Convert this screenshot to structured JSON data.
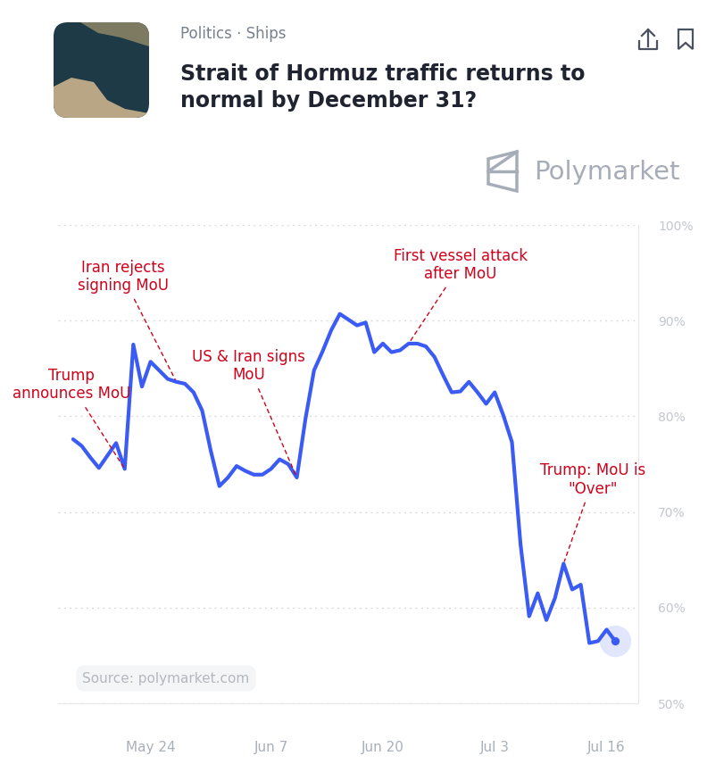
{
  "chart_data": {
    "type": "line",
    "header": {
      "category": "Politics · Ships",
      "title": "Strait of Hormuz traffic returns to normal by December 31?",
      "brand": "Polymarket"
    },
    "source": "Source: polymarket.com",
    "categories": [
      null,
      null,
      null,
      null,
      null,
      null,
      null,
      null,
      null,
      "May 24",
      null,
      null,
      null,
      null,
      null,
      null,
      null,
      null,
      null,
      null,
      null,
      null,
      null,
      "Jun 7",
      null,
      null,
      null,
      null,
      null,
      null,
      null,
      null,
      null,
      null,
      null,
      null,
      "Jun 20",
      null,
      null,
      null,
      null,
      null,
      null,
      null,
      null,
      null,
      null,
      null,
      null,
      "Jul 3",
      null,
      null,
      null,
      null,
      null,
      null,
      null,
      null,
      null,
      null,
      null,
      null,
      "Jul 16",
      null
    ],
    "series": [
      {
        "color": "#3b5bf5",
        "line_style": "solid",
        "values": [
          77.6,
          76.9,
          75.7,
          74.6,
          75.9,
          77.2,
          74.5,
          87.5,
          83.1,
          85.7,
          84.8,
          83.9,
          83.6,
          83.4,
          82.5,
          80.6,
          76.4,
          72.7,
          73.6,
          74.8,
          74.3,
          73.9,
          73.9,
          74.5,
          75.5,
          75.0,
          73.6,
          79.7,
          84.8,
          86.8,
          89.0,
          90.7,
          90.1,
          89.5,
          89.8,
          86.7,
          87.6,
          86.7,
          86.9,
          87.6,
          87.6,
          87.3,
          86.2,
          84.3,
          82.5,
          82.6,
          83.6,
          82.5,
          81.3,
          82.5,
          80.1,
          77.3,
          66.6,
          59.1,
          61.5,
          58.7,
          61.0,
          64.6,
          61.9,
          62.4,
          56.3,
          56.5,
          57.7,
          56.5
        ]
      }
    ],
    "ylim": [
      50,
      100
    ],
    "yticks": [
      {
        "value": 50,
        "label": "50%"
      },
      {
        "value": 60,
        "label": "60%"
      },
      {
        "value": 70,
        "label": "70%"
      },
      {
        "value": 80,
        "label": "80%"
      },
      {
        "value": 90,
        "label": "90%"
      },
      {
        "value": 100,
        "label": "100%"
      }
    ],
    "grid": true,
    "annotations": [
      {
        "text": "Trump announces MoU",
        "x": 6
      },
      {
        "text": "Iran rejects signing MoU",
        "x": 12
      },
      {
        "text": "US & Iran signs MoU",
        "x": 26
      },
      {
        "text": "First vessel attack after MoU",
        "x": 39
      },
      {
        "text": "Trump: MoU is \"Over\"",
        "x": 57
      }
    ]
  }
}
